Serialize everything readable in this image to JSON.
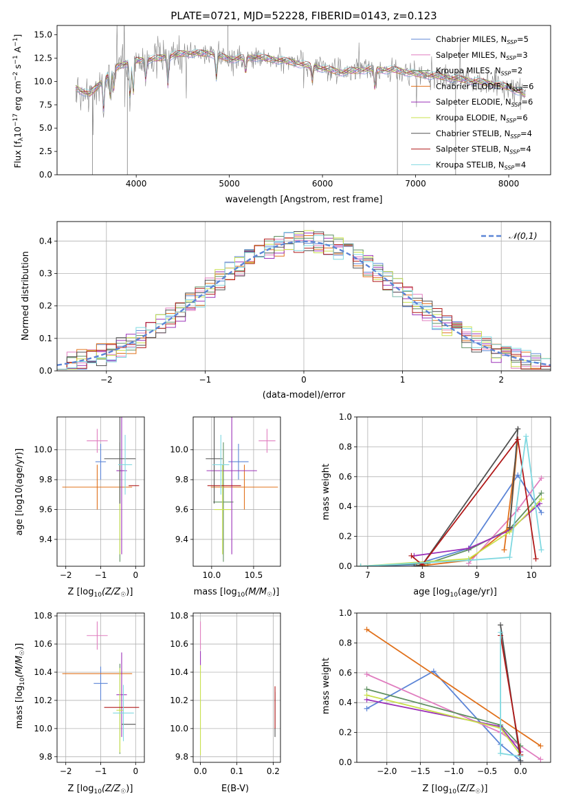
{
  "colors": {
    "chabrier_miles": "#5b84d6",
    "salpeter_miles": "#e07dbf",
    "kroupa_miles": "#5f9060",
    "chabrier_elodie": "#e0701a",
    "salpeter_elodie": "#9b30b8",
    "kroupa_elodie": "#c8e04a",
    "chabrier_stelib": "#505050",
    "salpeter_stelib": "#b01818",
    "kroupa_stelib": "#7fd8e0",
    "data": "#808080",
    "normal": "#5b84d6"
  },
  "chart_data": [
    {
      "type": "line",
      "title": "PLATE=0721, MJD=52228, FIBERID=0143, z=0.123",
      "xlabel": "wavelength [Angstrom, rest frame]",
      "ylabel_main": "Flux [f",
      "ylabel_sub": "λ",
      "ylabel_mid": "10",
      "ylabel_sup1": "−17",
      "ylabel_mid2": " erg cm",
      "ylabel_sup2": "−2",
      "ylabel_mid3": " s",
      "ylabel_sup3": "−1",
      "ylabel_mid4": " A",
      "ylabel_sup4": "−1",
      "ylabel_end": "]",
      "xlim": [
        3150,
        8450
      ],
      "ylim": [
        0,
        16
      ],
      "xticks": [
        4000,
        5000,
        6000,
        7000,
        8000
      ],
      "yticks": [
        0.0,
        2.5,
        5.0,
        7.5,
        10.0,
        12.5,
        15.0
      ],
      "legend_position": "upper right",
      "legend": [
        {
          "name": "Chabrier MILES, N",
          "n": "5"
        },
        {
          "name": "Salpeter MILES, N",
          "n": "3"
        },
        {
          "name": "Kroupa MILES, N",
          "n": "2"
        },
        {
          "name": "Chabrier ELODIE, N",
          "n": "6"
        },
        {
          "name": "Salpeter ELODIE, N",
          "n": "6"
        },
        {
          "name": "Kroupa ELODIE, N",
          "n": "6"
        },
        {
          "name": "Chabrier STELIB, N",
          "n": "4"
        },
        {
          "name": "Salpeter STELIB, N",
          "n": "4"
        },
        {
          "name": "Kroupa STELIB, N",
          "n": "4"
        }
      ],
      "legend_sub": "SSP",
      "continuum_points": [
        [
          3350,
          9.3
        ],
        [
          3500,
          8.6
        ],
        [
          3650,
          10.2
        ],
        [
          3800,
          11.6
        ],
        [
          3950,
          12.2
        ],
        [
          4200,
          12.4
        ],
        [
          4500,
          13.0
        ],
        [
          4800,
          13.0
        ],
        [
          5000,
          12.4
        ],
        [
          5300,
          12.6
        ],
        [
          5600,
          12.2
        ],
        [
          5900,
          11.6
        ],
        [
          6200,
          11.0
        ],
        [
          6500,
          11.3
        ],
        [
          6800,
          11.2
        ],
        [
          7000,
          10.8
        ],
        [
          7200,
          10.6
        ],
        [
          7500,
          10.2
        ],
        [
          7800,
          9.8
        ],
        [
          8000,
          9.4
        ],
        [
          8180,
          8.6
        ]
      ]
    },
    {
      "type": "step",
      "xlabel": "(data-model)/error",
      "ylabel": "Normed distribution",
      "xlim": [
        -2.5,
        2.5
      ],
      "ylim": [
        0,
        0.46
      ],
      "xticks": [
        -2,
        -1,
        0,
        1,
        2
      ],
      "yticks": [
        0.0,
        0.1,
        0.2,
        0.3,
        0.4
      ],
      "legend_label": "𝒩(0,1)",
      "bin_width": 0.1,
      "bins_start": -2.5
    },
    {
      "type": "errorbar",
      "xlabel_main": "Z [log",
      "xlabel_sub": "10",
      "xlabel_end": "(Z/Z",
      "xlabel_sun": "☉",
      "xlabel_close": ")]",
      "ylabel": "age  [log10(age/yr)]",
      "xlim": [
        -2.25,
        0.25
      ],
      "ylim": [
        9.22,
        10.22
      ],
      "xticks": [
        -2,
        -1,
        0
      ],
      "yticks": [
        9.4,
        9.6,
        9.8,
        10.0
      ],
      "series": [
        {
          "key": "chabrier_miles",
          "x": -1.0,
          "xerr": [
            0.15,
            0.15
          ],
          "y": 9.92,
          "yerr": [
            0.12,
            0.12
          ]
        },
        {
          "key": "salpeter_miles",
          "x": -1.1,
          "xerr": [
            0.3,
            0.3
          ],
          "y": 10.06,
          "yerr": [
            0.08,
            0.08
          ]
        },
        {
          "key": "kroupa_miles",
          "x": -0.45,
          "xerr": [
            0.0,
            0.0
          ],
          "y": 9.65,
          "yerr": [
            0.4,
            0.4
          ]
        },
        {
          "key": "chabrier_elodie",
          "x": -1.1,
          "xerr": [
            1.0,
            1.0
          ],
          "y": 9.75,
          "yerr": [
            0.15,
            0.15
          ]
        },
        {
          "key": "salpeter_elodie",
          "x": -0.4,
          "xerr": [
            0.15,
            0.15
          ],
          "y": 9.86,
          "yerr": [
            0.56,
            0.56
          ]
        },
        {
          "key": "kroupa_elodie",
          "x": -0.45,
          "xerr": [
            0.0,
            0.0
          ],
          "y": 9.6,
          "yerr": [
            0.3,
            0.3
          ]
        },
        {
          "key": "chabrier_stelib",
          "x": -0.45,
          "xerr": [
            0.45,
            0.45
          ],
          "y": 9.94,
          "yerr": [
            0.3,
            0.3
          ]
        },
        {
          "key": "salpeter_stelib",
          "x": -0.05,
          "xerr": [
            0.15,
            0.15
          ],
          "y": 9.76,
          "yerr": [
            0.0,
            0.0
          ]
        },
        {
          "key": "kroupa_stelib",
          "x": -0.3,
          "xerr": [
            0.2,
            0.2
          ],
          "y": 9.9,
          "yerr": [
            0.2,
            0.2
          ]
        }
      ]
    },
    {
      "type": "errorbar",
      "xlabel_main": "mass [log",
      "xlabel_sub": "10",
      "xlabel_end": "(M/M",
      "xlabel_sun": "☉",
      "xlabel_close": ")]",
      "xlim": [
        9.78,
        10.82
      ],
      "ylim": [
        9.22,
        10.22
      ],
      "xticks": [
        10.0,
        10.5
      ],
      "yticks": [
        9.4,
        9.6,
        9.8,
        10.0
      ],
      "series": [
        {
          "key": "chabrier_miles",
          "x": 10.32,
          "xerr": [
            0.12,
            0.12
          ],
          "y": 9.92,
          "yerr": [
            0.12,
            0.12
          ]
        },
        {
          "key": "salpeter_miles",
          "x": 10.66,
          "xerr": [
            0.1,
            0.1
          ],
          "y": 10.06,
          "yerr": [
            0.08,
            0.08
          ]
        },
        {
          "key": "kroupa_miles",
          "x": 10.14,
          "xerr": [
            0.12,
            0.12
          ],
          "y": 9.65,
          "yerr": [
            0.4,
            0.4
          ]
        },
        {
          "key": "chabrier_elodie",
          "x": 10.39,
          "xerr": [
            0.4,
            0.4
          ],
          "y": 9.75,
          "yerr": [
            0.15,
            0.15
          ]
        },
        {
          "key": "salpeter_elodie",
          "x": 10.24,
          "xerr": [
            0.3,
            0.3
          ],
          "y": 9.86,
          "yerr": [
            0.56,
            0.56
          ]
        },
        {
          "key": "kroupa_elodie",
          "x": 10.13,
          "xerr": [
            0.1,
            0.1
          ],
          "y": 9.6,
          "yerr": [
            0.3,
            0.3
          ]
        },
        {
          "key": "chabrier_stelib",
          "x": 10.03,
          "xerr": [
            0.1,
            0.1
          ],
          "y": 9.94,
          "yerr": [
            0.3,
            0.3
          ]
        },
        {
          "key": "salpeter_stelib",
          "x": 10.15,
          "xerr": [
            0.2,
            0.2
          ],
          "y": 9.76,
          "yerr": [
            0.0,
            0.0
          ]
        },
        {
          "key": "kroupa_stelib",
          "x": 10.11,
          "xerr": [
            0.1,
            0.1
          ],
          "y": 9.9,
          "yerr": [
            0.2,
            0.2
          ]
        }
      ]
    },
    {
      "type": "line",
      "xlabel_main": "age  [log",
      "xlabel_sub": "10",
      "xlabel_end": "(age/yr)]",
      "ylabel": "mass weight",
      "xlim": [
        6.8,
        10.35
      ],
      "ylim": [
        0,
        1.0
      ],
      "xticks": [
        7,
        8,
        9,
        10
      ],
      "yticks": [
        0.0,
        0.2,
        0.4,
        0.6,
        0.8,
        1.0
      ],
      "series": [
        {
          "key": "chabrier_miles",
          "x": [
            6.87,
            7.85,
            8.85,
            9.75,
            10.18
          ],
          "y": [
            0.0,
            0.01,
            0.12,
            0.61,
            0.36
          ]
        },
        {
          "key": "salpeter_miles",
          "x": [
            8.85,
            9.75,
            10.18
          ],
          "y": [
            0.02,
            0.38,
            0.59
          ]
        },
        {
          "key": "kroupa_miles",
          "x": [
            6.87,
            8.1,
            8.85,
            9.6,
            10.18
          ],
          "y": [
            0.0,
            0.02,
            0.11,
            0.25,
            0.49
          ]
        },
        {
          "key": "chabrier_elodie",
          "x": [
            7.9,
            8.85,
            9.6,
            9.75,
            9.5
          ],
          "y": [
            0.0,
            0.04,
            0.26,
            0.85,
            0.11
          ]
        },
        {
          "key": "salpeter_elodie",
          "x": [
            7.85,
            8.85,
            9.6,
            10.15
          ],
          "y": [
            0.07,
            0.12,
            0.24,
            0.42
          ]
        },
        {
          "key": "kroupa_elodie",
          "x": [
            6.87,
            8.85,
            9.6,
            10.18
          ],
          "y": [
            0.0,
            0.05,
            0.23,
            0.45
          ]
        },
        {
          "key": "chabrier_stelib",
          "x": [
            7.85,
            8.0,
            9.75,
            9.6
          ],
          "y": [
            0.0,
            0.01,
            0.92,
            0.26
          ]
        },
        {
          "key": "salpeter_stelib",
          "x": [
            7.8,
            8.0,
            9.75,
            10.08
          ],
          "y": [
            0.07,
            0.01,
            0.85,
            0.05
          ]
        },
        {
          "key": "kroupa_stelib",
          "x": [
            6.87,
            8.85,
            9.6,
            9.9,
            10.18
          ],
          "y": [
            0.0,
            0.04,
            0.06,
            0.87,
            0.11
          ]
        }
      ]
    },
    {
      "type": "errorbar",
      "xlabel_main": "Z [log",
      "xlabel_sub": "10",
      "xlabel_end": "(Z/Z",
      "xlabel_sun": "☉",
      "xlabel_close": ")]",
      "ylabel_main": "mass [log",
      "ylabel_sub": "10",
      "ylabel_end": "(M/M",
      "ylabel_sun": "☉",
      "ylabel_close": ")]",
      "xlim": [
        -2.25,
        0.25
      ],
      "ylim": [
        9.76,
        10.82
      ],
      "xticks": [
        -2,
        -1,
        0
      ],
      "yticks": [
        9.8,
        10.0,
        10.2,
        10.4,
        10.6,
        10.8
      ],
      "series": [
        {
          "key": "chabrier_miles",
          "x": -1.0,
          "xerr": [
            0.2,
            0.2
          ],
          "y": 10.32,
          "yerr": [
            0.12,
            0.12
          ]
        },
        {
          "key": "salpeter_miles",
          "x": -1.1,
          "xerr": [
            0.3,
            0.3
          ],
          "y": 10.66,
          "yerr": [
            0.1,
            0.1
          ]
        },
        {
          "key": "kroupa_miles",
          "x": -0.45,
          "xerr": [
            0.0,
            0.0
          ],
          "y": 10.14,
          "yerr": [
            0.32,
            0.32
          ]
        },
        {
          "key": "chabrier_elodie",
          "x": -1.1,
          "xerr": [
            1.0,
            1.0
          ],
          "y": 10.39,
          "yerr": [
            0.0,
            0.0
          ]
        },
        {
          "key": "salpeter_elodie",
          "x": -0.4,
          "xerr": [
            0.15,
            0.15
          ],
          "y": 10.24,
          "yerr": [
            0.3,
            0.3
          ]
        },
        {
          "key": "kroupa_elodie",
          "x": -0.45,
          "xerr": [
            0.1,
            0.1
          ],
          "y": 10.13,
          "yerr": [
            0.3,
            0.3
          ]
        },
        {
          "key": "chabrier_stelib",
          "x": -0.2,
          "xerr": [
            0.2,
            0.2
          ],
          "y": 10.03,
          "yerr": [
            0.0,
            0.0
          ]
        },
        {
          "key": "salpeter_stelib",
          "x": -0.4,
          "xerr": [
            0.5,
            0.5
          ],
          "y": 10.15,
          "yerr": [
            0.0,
            0.0
          ]
        },
        {
          "key": "kroupa_stelib",
          "x": -0.35,
          "xerr": [
            0.3,
            0.3
          ],
          "y": 10.11,
          "yerr": [
            0.2,
            0.2
          ]
        }
      ]
    },
    {
      "type": "errorbar",
      "xlabel": "E(B-V)",
      "xlim": [
        -0.02,
        0.22
      ],
      "ylim": [
        9.76,
        10.82
      ],
      "xticks": [
        0.0,
        0.1,
        0.2
      ],
      "yticks": [
        9.8,
        10.0,
        10.2,
        10.4,
        10.6,
        10.8
      ],
      "series": [
        {
          "key": "salpeter_miles",
          "x": 0.0,
          "y": 10.66,
          "yerr": [
            0.1,
            0.1
          ]
        },
        {
          "key": "salpeter_elodie",
          "x": 0.0,
          "y": 10.5,
          "yerr": [
            0.05,
            0.05
          ]
        },
        {
          "key": "kroupa_elodie",
          "x": 0.0,
          "y": 10.13,
          "yerr": [
            0.32,
            0.32
          ]
        },
        {
          "key": "chabrier_stelib",
          "x": 0.205,
          "y": 10.1,
          "yerr": [
            0.16,
            0.16
          ]
        },
        {
          "key": "salpeter_stelib",
          "x": 0.205,
          "y": 10.15,
          "yerr": [
            0.15,
            0.15
          ]
        }
      ]
    },
    {
      "type": "line",
      "xlabel_main": "Z [log",
      "xlabel_sub": "10",
      "xlabel_end": "(Z/Z",
      "xlabel_sun": "☉",
      "xlabel_close": ")]",
      "ylabel": "mass weight",
      "xlim": [
        -2.45,
        0.45
      ],
      "ylim": [
        0,
        1.0
      ],
      "xticks": [
        -2.0,
        -1.5,
        -1.0,
        -0.5,
        0.0
      ],
      "yticks": [
        0.0,
        0.2,
        0.4,
        0.6,
        0.8,
        1.0
      ],
      "series": [
        {
          "key": "chabrier_miles",
          "x": [
            -2.3,
            -1.3,
            -0.3,
            0.0
          ],
          "y": [
            0.36,
            0.61,
            0.12,
            0.01
          ]
        },
        {
          "key": "salpeter_miles",
          "x": [
            -2.3,
            -0.3,
            0.3
          ],
          "y": [
            0.59,
            0.2,
            0.02
          ]
        },
        {
          "key": "kroupa_miles",
          "x": [
            -2.3,
            -0.3,
            0.0
          ],
          "y": [
            0.49,
            0.25,
            0.11
          ]
        },
        {
          "key": "chabrier_elodie",
          "x": [
            -2.3,
            0.3
          ],
          "y": [
            0.89,
            0.11
          ]
        },
        {
          "key": "salpeter_elodie",
          "x": [
            -2.3,
            -0.3,
            0.0
          ],
          "y": [
            0.42,
            0.24,
            0.07
          ]
        },
        {
          "key": "kroupa_elodie",
          "x": [
            -2.3,
            -0.3,
            0.0
          ],
          "y": [
            0.45,
            0.23,
            0.05
          ]
        },
        {
          "key": "chabrier_stelib",
          "x": [
            -0.3,
            0.0
          ],
          "y": [
            0.92,
            0.01
          ]
        },
        {
          "key": "salpeter_stelib",
          "x": [
            -0.3,
            0.0
          ],
          "y": [
            0.85,
            0.05
          ]
        },
        {
          "key": "kroupa_stelib",
          "x": [
            -0.3,
            -0.3,
            0.0
          ],
          "y": [
            0.87,
            0.06,
            0.04
          ]
        }
      ]
    }
  ]
}
